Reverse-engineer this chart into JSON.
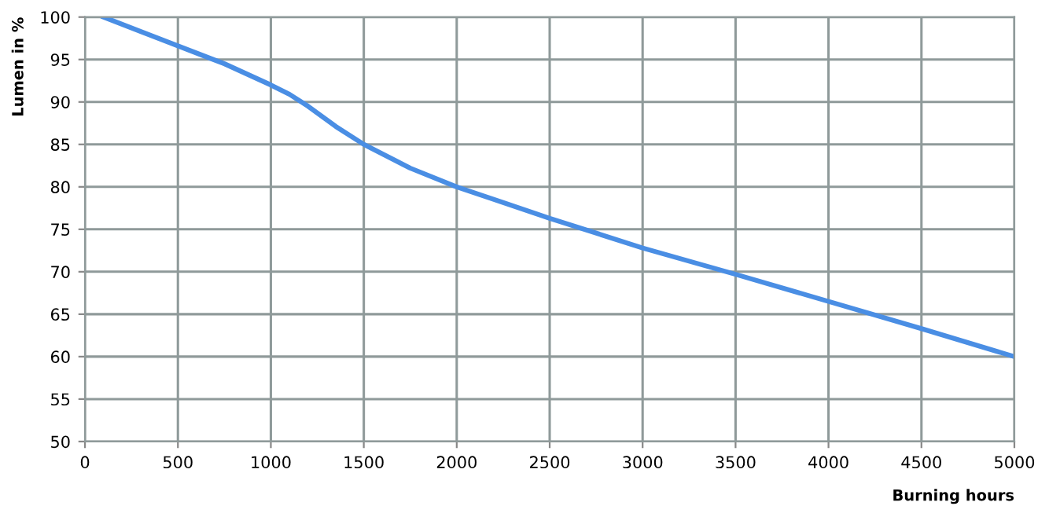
{
  "chart_data": {
    "type": "line",
    "xlabel": "Burning hours",
    "ylabel": "Lumen in %",
    "x": [
      100,
      300,
      500,
      750,
      1000,
      1100,
      1200,
      1350,
      1500,
      1750,
      2000,
      2500,
      3000,
      3500,
      4000,
      4500,
      5000
    ],
    "series": [
      {
        "color": "#4a8ee4",
        "values": [
          100,
          98.3,
          96.6,
          94.5,
          92,
          90.9,
          89.5,
          87.1,
          85,
          82.2,
          80,
          76.3,
          72.8,
          69.7,
          66.5,
          63.3,
          60
        ]
      }
    ],
    "xlim": [
      0,
      5000
    ],
    "xticks": [
      0,
      500,
      1000,
      1500,
      2000,
      2500,
      3000,
      3500,
      4000,
      4500,
      5000
    ],
    "ylim": [
      50,
      100
    ],
    "yticks": [
      50,
      55,
      60,
      65,
      70,
      75,
      80,
      85,
      90,
      95,
      100
    ],
    "grid": true,
    "legend": false,
    "marker": "none",
    "line_style": "solid"
  }
}
